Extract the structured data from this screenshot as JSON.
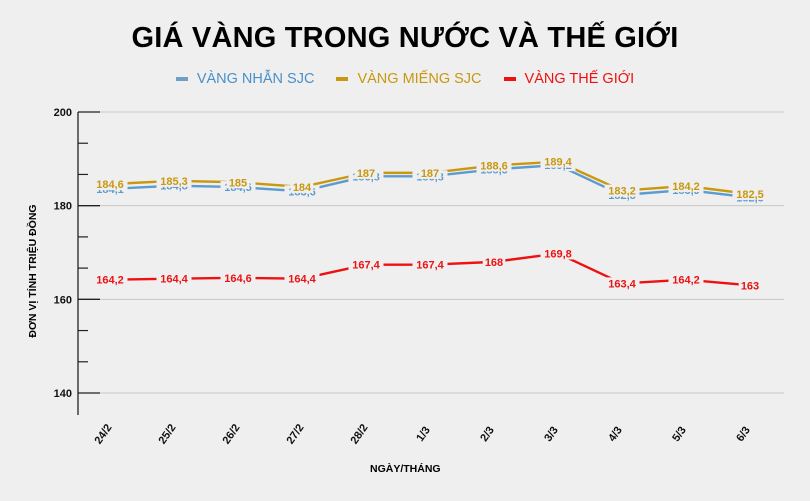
{
  "title": "GIÁ VÀNG TRONG NƯỚC VÀ THẾ GIỚI",
  "legend": [
    {
      "label": "VÀNG NHẪN SJC",
      "color": "#4a90c8",
      "swatch": "#6fa0c4"
    },
    {
      "label": "VÀNG MIẾNG SJC",
      "color": "#c8980f",
      "swatch": "#c8980f"
    },
    {
      "label": "VÀNG THẾ GIỚI",
      "color": "#ee1111",
      "swatch": "#ee1111"
    }
  ],
  "axes": {
    "ylabel": "ĐƠN VỊ TÍNH TRIỆU ĐỒNG",
    "xlabel": "NGÀY/THÁNG"
  },
  "chart_data": {
    "type": "line",
    "title": "GIÁ VÀNG TRONG NƯỚC VÀ THẾ GIỚI",
    "xlabel": "NGÀY/THÁNG",
    "ylabel": "ĐƠN VỊ TÍNH TRIỆU ĐỒNG",
    "categories": [
      "24/2",
      "25/2",
      "26/2",
      "27/2",
      "28/2",
      "1/3",
      "2/3",
      "3/3",
      "4/3",
      "5/3",
      "6/3"
    ],
    "ylim": [
      140,
      200
    ],
    "yticks": [
      140,
      160,
      180,
      200
    ],
    "grid": true,
    "legend_position": "top",
    "series": [
      {
        "name": "VÀNG NHẪN SJC",
        "color": "#5b9bd0",
        "values": [
          184.1,
          184.8,
          184.5,
          183.6,
          186.8,
          186.8,
          188.3,
          189.2,
          182.8,
          183.9,
          182.3
        ],
        "labels": [
          "184,1",
          "184,8",
          "184,5",
          "183,6",
          "186,8",
          "186,8",
          "188,3",
          "189,2",
          "182,8",
          "183,9",
          "182,3"
        ]
      },
      {
        "name": "VÀNG MIẾNG SJC",
        "color": "#c8980f",
        "values": [
          184.6,
          185.3,
          185,
          184,
          187,
          187,
          188.6,
          189.4,
          183.2,
          184.2,
          182.5
        ],
        "labels": [
          "184,6",
          "185,3",
          "185",
          "184",
          "187",
          "187",
          "188,6",
          "189,4",
          "183,2",
          "184,2",
          "182,5"
        ]
      },
      {
        "name": "VÀNG THẾ GIỚI",
        "color": "#ee1111",
        "values": [
          164.2,
          164.4,
          164.6,
          164.4,
          167.4,
          167.4,
          168,
          169.8,
          163.4,
          164.2,
          163
        ],
        "labels": [
          "164,2",
          "164,4",
          "164,6",
          "164,4",
          "167,4",
          "167,4",
          "168",
          "169,8",
          "163,4",
          "164,2",
          "163"
        ]
      }
    ]
  }
}
